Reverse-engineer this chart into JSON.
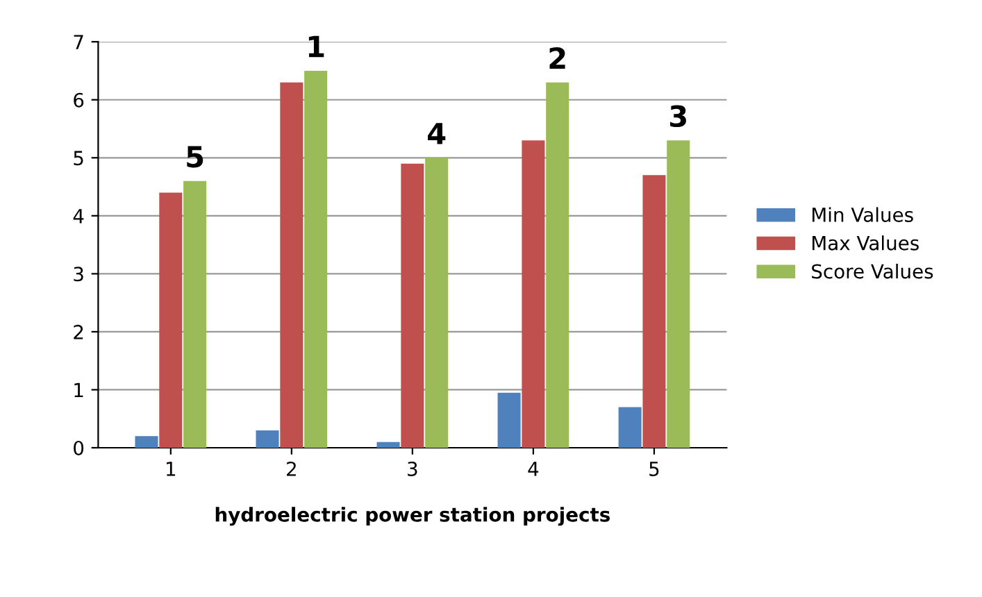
{
  "chart_data": {
    "type": "bar",
    "xlabel": "hydroelectric power station projects",
    "categories": [
      "1",
      "2",
      "3",
      "4",
      "5"
    ],
    "series": [
      {
        "name": "Min Values",
        "color": "#4f81bd",
        "values": [
          0.2,
          0.3,
          0.1,
          0.95,
          0.7
        ]
      },
      {
        "name": "Max Values",
        "color": "#c0504d",
        "values": [
          4.4,
          6.3,
          4.9,
          5.3,
          4.7
        ]
      },
      {
        "name": "Score Values",
        "color": "#9bbb59",
        "values": [
          4.6,
          6.5,
          5.0,
          6.3,
          5.3
        ]
      }
    ],
    "ylim": [
      0,
      7
    ],
    "yticks": [
      0,
      1,
      2,
      3,
      4,
      5,
      6,
      7
    ],
    "grid": "y",
    "legend": "right",
    "annotations": [
      "5",
      "1",
      "4",
      "2",
      "3"
    ]
  }
}
